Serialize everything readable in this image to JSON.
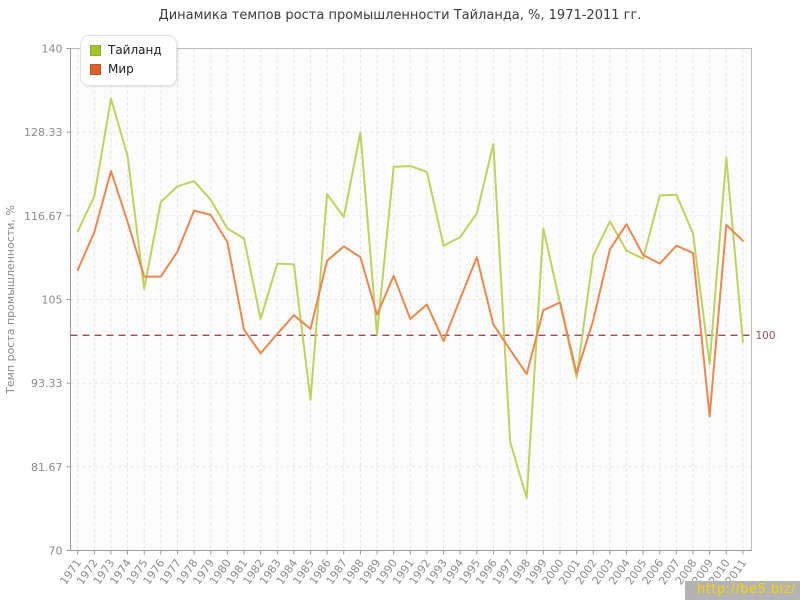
{
  "title": "Динамика темпов роста промышленности Тайланда, %, 1971-2011 гг.",
  "watermark": "http://be5.biz/",
  "chart_data": {
    "type": "line",
    "title": "Динамика темпов роста промышленности Тайланда, %, 1971-2011 гг.",
    "xlabel": "",
    "ylabel": "Темп роста промышленности, %",
    "ylim": [
      70,
      140
    ],
    "yticks": [
      70,
      81.67,
      93.33,
      105,
      116.67,
      128.33,
      140
    ],
    "ytick_labels": [
      "70",
      "81.67",
      "93.33",
      "105",
      "116.67",
      "128.33",
      "140"
    ],
    "grid": true,
    "legend_position": "top-left",
    "reference_line": {
      "value": 100,
      "label": "100",
      "color": "#9b4a55"
    },
    "x": [
      1971,
      1972,
      1973,
      1974,
      1975,
      1976,
      1977,
      1978,
      1979,
      1980,
      1981,
      1982,
      1983,
      1984,
      1985,
      1986,
      1987,
      1988,
      1989,
      1990,
      1991,
      1992,
      1993,
      1994,
      1995,
      1996,
      1997,
      1998,
      1999,
      2000,
      2001,
      2002,
      2003,
      2004,
      2005,
      2006,
      2007,
      2008,
      2009,
      2010,
      2011
    ],
    "series": [
      {
        "name": "Тайланд",
        "swatch_color": "#a3c62c",
        "line_color": "#bdd25f",
        "values": [
          114.5,
          119.4,
          133,
          125,
          106.5,
          118.6,
          120.8,
          121.5,
          118.9,
          114.9,
          113.5,
          102.3,
          110,
          109.9,
          91,
          119.7,
          116.5,
          128.3,
          100.1,
          123.5,
          123.6,
          122.8,
          112.5,
          113.7,
          117,
          126.7,
          85.2,
          77.3,
          114.9,
          104.5,
          94.1,
          111.1,
          115.9,
          111.8,
          110.7,
          119.5,
          119.6,
          114.2,
          96,
          124.8,
          99.1
        ]
      },
      {
        "name": "Мир",
        "swatch_color": "#dd5f28",
        "line_color": "#e9894f",
        "values": [
          109.1,
          114.4,
          122.9,
          115.8,
          108.2,
          108.2,
          111.7,
          117.4,
          116.8,
          113,
          100.8,
          97.5,
          100.2,
          102.8,
          100.9,
          110.4,
          112.4,
          110.9,
          102.9,
          108.3,
          102.3,
          104.3,
          99.2,
          105.1,
          110.9,
          101.5,
          98,
          94.6,
          103.5,
          104.6,
          94.7,
          102.1,
          112,
          115.5,
          111.2,
          110,
          112.5,
          111.5,
          88.7,
          115.4,
          113.2
        ]
      }
    ],
    "colors": {
      "grid_line": "#e4e4e4",
      "plot_border": "#bdbdbd",
      "axis_line": "#9a9a9a",
      "plot_background": "#fcfcfc",
      "title_text": "#3a3a3a",
      "tick_text": "#8c8c8c"
    }
  }
}
